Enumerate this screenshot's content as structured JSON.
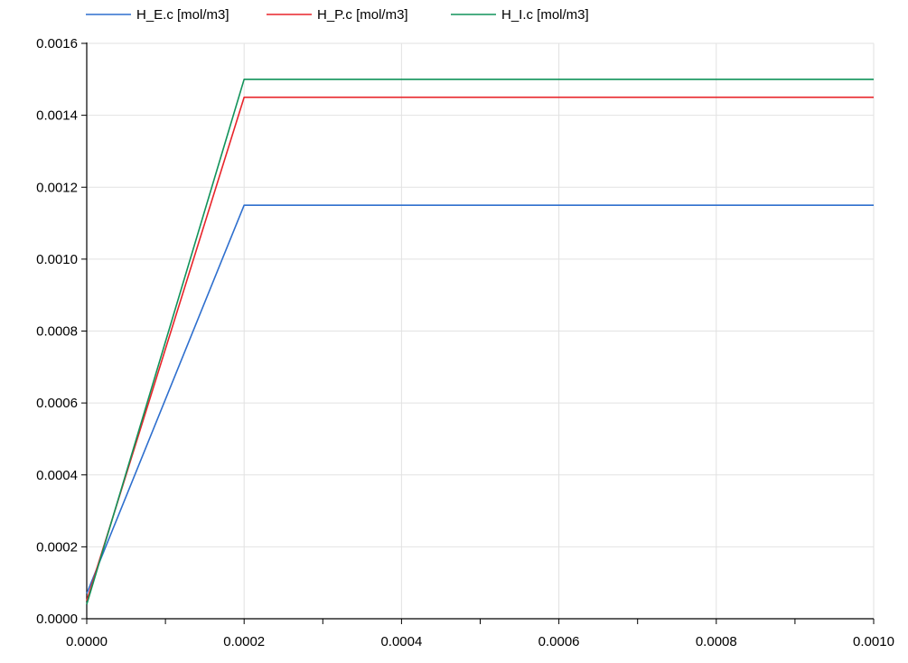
{
  "chart_data": {
    "type": "line",
    "title": "",
    "xlabel": "",
    "ylabel": "",
    "xlim": [
      0,
      0.001
    ],
    "ylim": [
      0,
      0.0016
    ],
    "x_ticks": [
      "0.0000",
      "0.0002",
      "0.0004",
      "0.0006",
      "0.0008",
      "0.0010"
    ],
    "y_ticks": [
      "0.0000",
      "0.0002",
      "0.0004",
      "0.0006",
      "0.0008",
      "0.0010",
      "0.0012",
      "0.0014",
      "0.0016"
    ],
    "grid": true,
    "legend_position": "top",
    "series": [
      {
        "name": "H_E.c [mol/m3]",
        "color": "#2e6fce",
        "x": [
          0,
          0.0002,
          0.001
        ],
        "y": [
          7e-05,
          0.00115,
          0.00115
        ]
      },
      {
        "name": "H_P.c [mol/m3]",
        "color": "#e8242a",
        "x": [
          0,
          0.0002,
          0.001
        ],
        "y": [
          5e-05,
          0.00145,
          0.00145
        ]
      },
      {
        "name": "H_I.c [mol/m3]",
        "color": "#11935a",
        "x": [
          0,
          0.0002,
          0.001
        ],
        "y": [
          4e-05,
          0.0015,
          0.0015
        ]
      }
    ]
  }
}
